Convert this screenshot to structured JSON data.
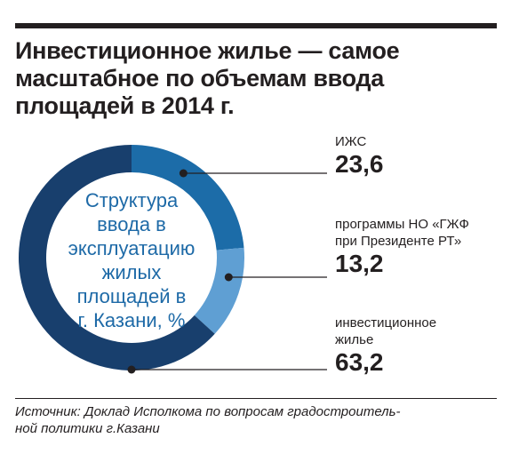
{
  "headline": [
    "Инвестиционное жилье — самое",
    "масштабное по объемам ввода",
    "площадей в 2014 г."
  ],
  "chart_data": {
    "type": "pie",
    "center_title": [
      "Структура",
      "ввода в",
      "эксплуатацию",
      "жилых",
      "площадей в",
      "г. Казани, %"
    ],
    "slices": [
      {
        "label": "ИЖС",
        "value": 23.6,
        "value_text": "23,6",
        "color": "#1c6ca8"
      },
      {
        "label": "программы НО «ГЖФ при Президенте РТ»",
        "label_lines": [
          "программы НО «ГЖФ",
          "при Президенте РТ»"
        ],
        "value": 13.2,
        "value_text": "13,2",
        "color": "#5f9fd3"
      },
      {
        "label": "инвестиционное жилье",
        "label_lines": [
          "инвестиционное",
          "жилье"
        ],
        "value": 63.2,
        "value_text": "63,2",
        "color": "#183f6d"
      }
    ],
    "leader_color": "#231f20"
  },
  "source": [
    "Источник: Доклад Исполкома по вопросам градостроитель-",
    "ной политики г.Казани"
  ]
}
